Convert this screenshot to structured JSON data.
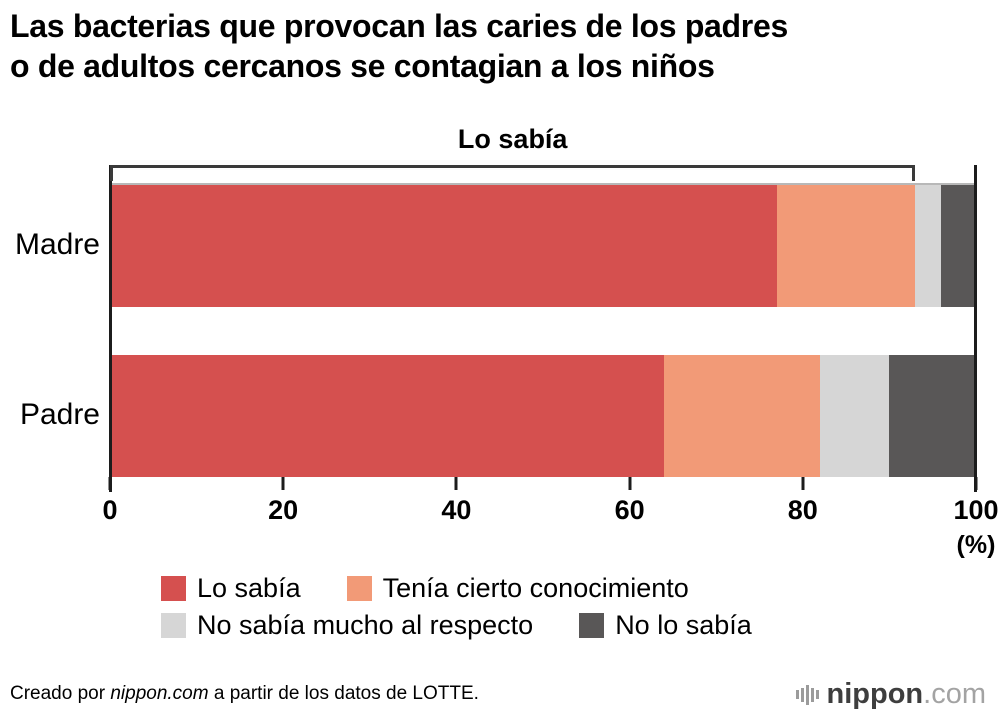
{
  "title": "Las bacterias que provocan las caries de los padres\no de adultos cercanos se contagian a los niños",
  "chart_data": {
    "type": "bar",
    "orientation": "horizontal",
    "stacked": true,
    "categories": [
      "Madre",
      "Padre"
    ],
    "series": [
      {
        "name": "Lo sabía",
        "color": "#d5504f",
        "values": [
          77,
          64
        ]
      },
      {
        "name": "Tenía cierto conocimiento",
        "color": "#f29a77",
        "values": [
          16,
          18
        ]
      },
      {
        "name": "No sabía mucho al respecto",
        "color": "#d6d6d6",
        "values": [
          3,
          8
        ]
      },
      {
        "name": "No lo sabía",
        "color": "#595757",
        "values": [
          4,
          10
        ]
      }
    ],
    "xlim": [
      0,
      100
    ],
    "x_ticks": [
      0,
      20,
      40,
      60,
      80,
      100
    ],
    "x_unit": "(%)",
    "annotation": {
      "label": "Lo sabía",
      "from": 0,
      "to": 93
    },
    "legend_rows": [
      [
        0,
        1
      ],
      [
        2,
        3
      ]
    ],
    "legend_position": "bottom",
    "grid": false
  },
  "footer": {
    "credit_prefix": "Creado por ",
    "credit_brand": "nippon.com",
    "credit_suffix": " a partir de los datos de LOTTE."
  },
  "logo": {
    "icon": "soundbars-icon",
    "brand": "nippon",
    "tld": ".com"
  }
}
